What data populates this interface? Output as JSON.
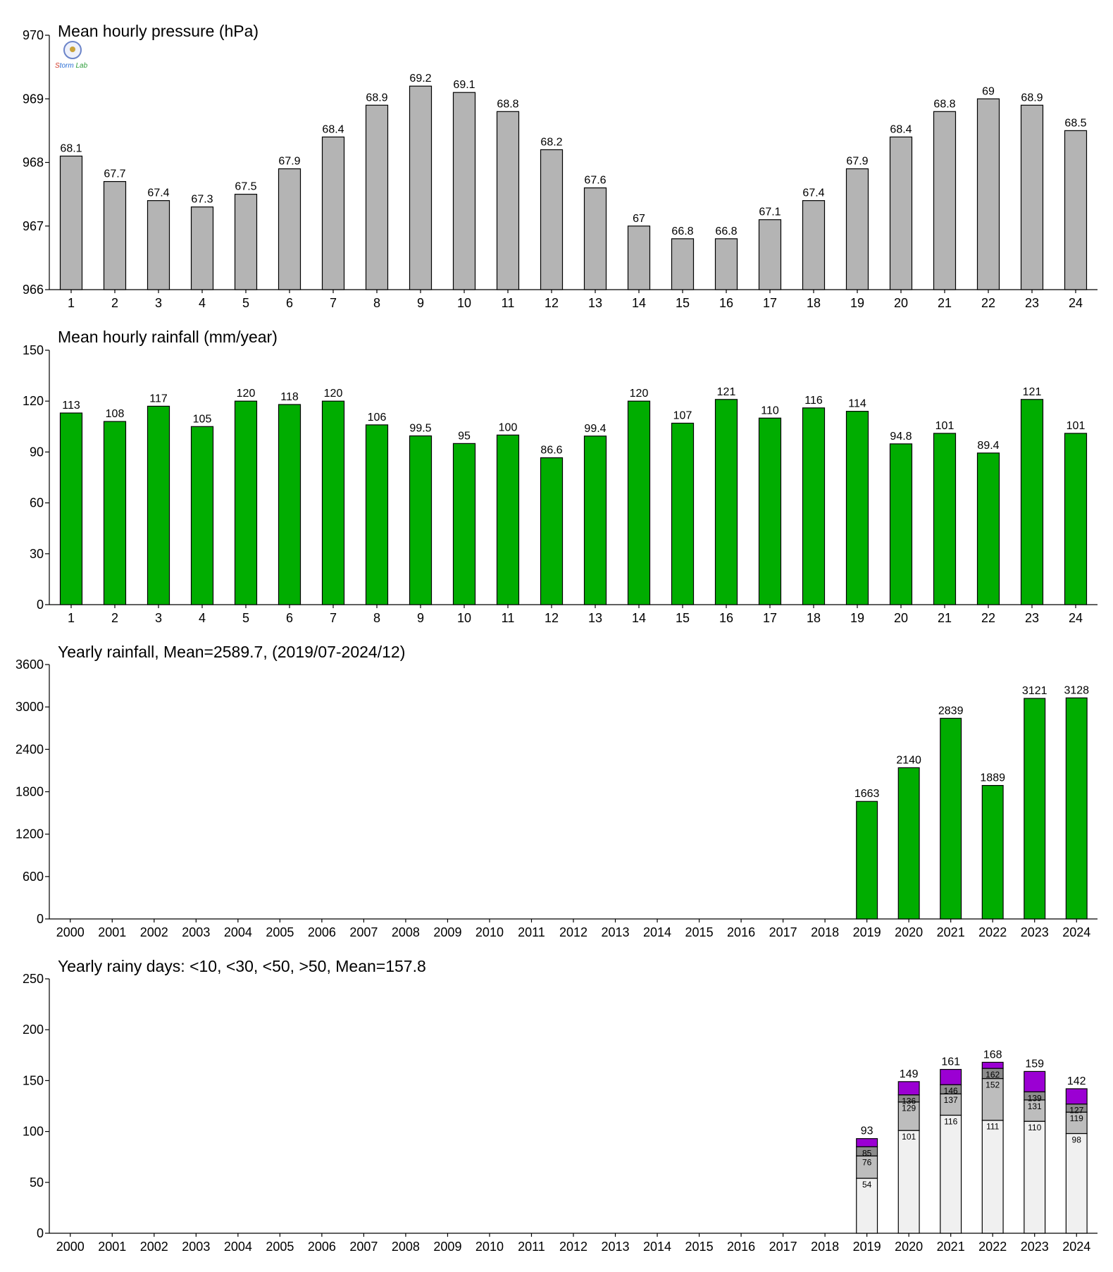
{
  "logo": {
    "text_parts": [
      "S",
      "torm",
      "Lab"
    ]
  },
  "chart_data": [
    {
      "type": "bar",
      "title": "Mean hourly pressure (hPa)",
      "categories": [
        "1",
        "2",
        "3",
        "4",
        "5",
        "6",
        "7",
        "8",
        "9",
        "10",
        "11",
        "12",
        "13",
        "14",
        "15",
        "16",
        "17",
        "18",
        "19",
        "20",
        "21",
        "22",
        "23",
        "24"
      ],
      "values": [
        968.1,
        967.7,
        967.4,
        967.3,
        967.5,
        967.9,
        968.4,
        968.9,
        969.2,
        969.1,
        968.8,
        968.2,
        967.6,
        967.0,
        966.8,
        966.8,
        967.1,
        967.4,
        967.9,
        968.4,
        968.8,
        969.0,
        968.9,
        968.5
      ],
      "labels": [
        "68.1",
        "67.7",
        "67.4",
        "67.3",
        "67.5",
        "67.9",
        "68.4",
        "68.9",
        "69.2",
        "69.1",
        "68.8",
        "68.2",
        "67.6",
        "67",
        "66.8",
        "66.8",
        "67.1",
        "67.4",
        "67.9",
        "68.4",
        "68.8",
        "69",
        "68.9",
        "68.5"
      ],
      "ylim": [
        966,
        970
      ],
      "yticks": [
        "966",
        "967",
        "968",
        "969",
        "970"
      ],
      "color": "#b4b4b4"
    },
    {
      "type": "bar",
      "title": "Mean hourly rainfall (mm/year)",
      "categories": [
        "1",
        "2",
        "3",
        "4",
        "5",
        "6",
        "7",
        "8",
        "9",
        "10",
        "11",
        "12",
        "13",
        "14",
        "15",
        "16",
        "17",
        "18",
        "19",
        "20",
        "21",
        "22",
        "23",
        "24"
      ],
      "values": [
        113,
        108,
        117,
        105,
        120,
        118,
        120,
        106,
        99.5,
        95,
        100,
        86.6,
        99.4,
        120,
        107,
        121,
        110,
        116,
        114,
        94.8,
        101,
        89.4,
        121,
        101
      ],
      "labels": [
        "113",
        "108",
        "117",
        "105",
        "120",
        "118",
        "120",
        "106",
        "99.5",
        "95",
        "100",
        "86.6",
        "99.4",
        "120",
        "107",
        "121",
        "110",
        "116",
        "114",
        "94.8",
        "101",
        "89.4",
        "121",
        "101"
      ],
      "ylim": [
        0,
        150
      ],
      "yticks": [
        "0",
        "30",
        "60",
        "90",
        "120",
        "150"
      ],
      "color": "#00ad00"
    },
    {
      "type": "bar",
      "title": "Yearly rainfall, Mean=2589.7, (2019/07-2024/12)",
      "categories": [
        "2000",
        "2001",
        "2002",
        "2003",
        "2004",
        "2005",
        "2006",
        "2007",
        "2008",
        "2009",
        "2010",
        "2011",
        "2012",
        "2013",
        "2014",
        "2015",
        "2016",
        "2017",
        "2018",
        "2019",
        "2020",
        "2021",
        "2022",
        "2023",
        "2024"
      ],
      "values": [
        null,
        null,
        null,
        null,
        null,
        null,
        null,
        null,
        null,
        null,
        null,
        null,
        null,
        null,
        null,
        null,
        null,
        null,
        null,
        1663,
        2140,
        2839,
        1889,
        3121,
        3128
      ],
      "labels": [
        "",
        "",
        "",
        "",
        "",
        "",
        "",
        "",
        "",
        "",
        "",
        "",
        "",
        "",
        "",
        "",
        "",
        "",
        "",
        "1663",
        "2140",
        "2839",
        "1889",
        "3121",
        "3128"
      ],
      "ylim": [
        0,
        3600
      ],
      "yticks": [
        "0",
        "600",
        "1200",
        "1800",
        "2400",
        "3000",
        "3600"
      ],
      "color": "#00ad00"
    },
    {
      "type": "bar",
      "stacked": true,
      "title": "Yearly rainy days: <10, <30, <50, >50, Mean=157.8",
      "categories": [
        "2000",
        "2001",
        "2002",
        "2003",
        "2004",
        "2005",
        "2006",
        "2007",
        "2008",
        "2009",
        "2010",
        "2011",
        "2012",
        "2013",
        "2014",
        "2015",
        "2016",
        "2017",
        "2018",
        "2019",
        "2020",
        "2021",
        "2022",
        "2023",
        "2024"
      ],
      "cumulative": [
        {
          "year": "2019",
          "values": [
            54,
            76,
            85,
            93
          ]
        },
        {
          "year": "2020",
          "values": [
            101,
            129,
            136,
            149
          ]
        },
        {
          "year": "2021",
          "values": [
            116,
            137,
            146,
            161
          ]
        },
        {
          "year": "2022",
          "values": [
            111,
            152,
            162,
            168
          ]
        },
        {
          "year": "2023",
          "values": [
            110,
            131,
            139,
            159
          ]
        },
        {
          "year": "2024",
          "values": [
            98,
            119,
            127,
            142
          ]
        }
      ],
      "ylim": [
        0,
        250
      ],
      "yticks": [
        "0",
        "50",
        "100",
        "150",
        "200",
        "250"
      ],
      "colors": [
        "#f0f0f0",
        "#bdbdbd",
        "#8c8c8c",
        "#9b00d3"
      ]
    }
  ]
}
